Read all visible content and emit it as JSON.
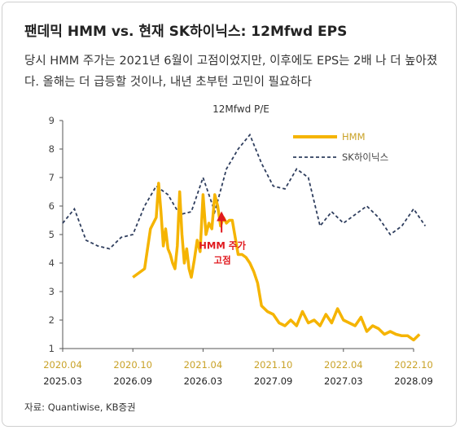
{
  "title": "팬데믹 HMM vs. 현재 SK하이닉스: 12Mfwd EPS",
  "subtitle": "당시 HMM 주가는 2021년 6월이 고점이었지만, 이후에도 EPS는 2배 나 더 높아졌다. 올해는 더 급등할 것이나, 내년 초부턴 고민이 필요하다",
  "source": "자료: Quantiwise, KB증권",
  "colors": {
    "hmm": "#F5B400",
    "skhynix": "#2F3E5E",
    "axis_top": "#C9A227",
    "axis_bottom": "#222222",
    "arrow": "#E0191E"
  },
  "chart_data": {
    "type": "line",
    "title": "12Mfwd P/E",
    "ylim": [
      1,
      9
    ],
    "yticks": [
      "1",
      "2",
      "3",
      "4",
      "5",
      "6",
      "7",
      "8",
      "9"
    ],
    "x_axis_top_labels": [
      "2020.04",
      "2020.10",
      "2021.04",
      "2021.10",
      "2022.04",
      "2022.10"
    ],
    "x_axis_bottom_labels": [
      "2025.03",
      "2026.09",
      "2026.03",
      "2027.09",
      "2027.03",
      "2028.09"
    ],
    "x_range_hmm": [
      "2020.04",
      "2022.10"
    ],
    "legend_position": "top-right",
    "annotation": {
      "line1": "HMM 주가",
      "line2": "고점",
      "at_x": "2021.06",
      "at_y": 5.7
    },
    "series": [
      {
        "name": "HMM",
        "style": "solid",
        "x": [
          "2020.10",
          "2020.11",
          "2020.11",
          "2020.12",
          "2020.12",
          "2020.12",
          "2020.12",
          "2020.12",
          "2021.01",
          "2021.01",
          "2021.01",
          "2021.01",
          "2021.01",
          "2021.02",
          "2021.02",
          "2021.02",
          "2021.02",
          "2021.02",
          "2021.03",
          "2021.03",
          "2021.03",
          "2021.03",
          "2021.04",
          "2021.04",
          "2021.04",
          "2021.04",
          "2021.05",
          "2021.05",
          "2021.05",
          "2021.05",
          "2021.06",
          "2021.06",
          "2021.06",
          "2021.06",
          "2021.07",
          "2021.07",
          "2021.07",
          "2021.08",
          "2021.08",
          "2021.08",
          "2021.09",
          "2021.09",
          "2021.10",
          "2021.10",
          "2021.11",
          "2021.11",
          "2021.12",
          "2021.12",
          "2022.01",
          "2022.01",
          "2022.02",
          "2022.02",
          "2022.03",
          "2022.03",
          "2022.04",
          "2022.04",
          "2022.05",
          "2022.05",
          "2022.06",
          "2022.06",
          "2022.07",
          "2022.07",
          "2022.08",
          "2022.08",
          "2022.09",
          "2022.09",
          "2022.10",
          "2022.10"
        ],
        "values": [
          3.5,
          3.8,
          5.2,
          5.6,
          6.8,
          5.8,
          4.6,
          5.2,
          4.5,
          4.3,
          4.0,
          3.8,
          4.6,
          6.5,
          5.0,
          4.0,
          4.5,
          3.8,
          3.5,
          4.1,
          4.8,
          4.4,
          6.4,
          5.0,
          5.4,
          5.2,
          6.4,
          6.0,
          5.3,
          5.6,
          5.4,
          5.5,
          5.5,
          4.9,
          4.3,
          4.3,
          4.2,
          4.0,
          3.7,
          3.3,
          2.5,
          2.3,
          2.2,
          1.9,
          1.8,
          2.0,
          1.8,
          2.3,
          1.9,
          2.0,
          1.8,
          2.2,
          1.9,
          2.4,
          2.0,
          1.9,
          1.8,
          2.1,
          1.6,
          1.8,
          1.7,
          1.5,
          1.6,
          1.5,
          1.45,
          1.45,
          1.3,
          1.5
        ]
      },
      {
        "name": "SK하이닉스",
        "style": "dashed",
        "x": [
          "2025.03",
          "2025.04",
          "2025.05",
          "2025.06",
          "2025.07",
          "2025.08",
          "2025.09",
          "2025.10",
          "2025.11",
          "2025.12",
          "2026.01",
          "2026.02",
          "2026.03",
          "2026.04",
          "2026.05",
          "2026.06",
          "2026.07",
          "2026.08",
          "2026.09",
          "2026.10",
          "2026.11",
          "2026.12",
          "2027.01",
          "2027.02",
          "2027.03",
          "2027.04",
          "2027.05",
          "2027.06",
          "2027.07",
          "2027.08",
          "2027.09",
          "2027.10"
        ],
        "values": [
          5.4,
          5.9,
          4.8,
          4.6,
          4.5,
          4.9,
          5.0,
          6.0,
          6.7,
          6.4,
          5.7,
          5.8,
          7.0,
          5.8,
          7.3,
          8.0,
          8.5,
          7.5,
          6.7,
          6.6,
          7.3,
          7.0,
          5.3,
          5.8,
          5.4,
          5.7,
          6.0,
          5.6,
          5.0,
          5.3,
          5.9,
          5.3
        ]
      }
    ]
  }
}
